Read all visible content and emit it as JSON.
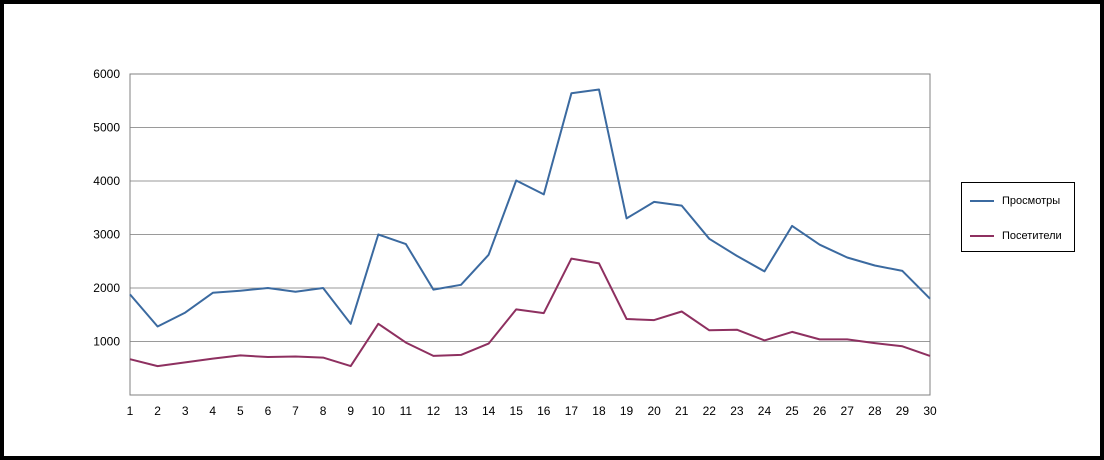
{
  "chart_data": {
    "type": "line",
    "title": "",
    "xlabel": "",
    "ylabel": "",
    "x": [
      1,
      2,
      3,
      4,
      5,
      6,
      7,
      8,
      9,
      10,
      11,
      12,
      13,
      14,
      15,
      16,
      17,
      18,
      19,
      20,
      21,
      22,
      23,
      24,
      25,
      26,
      27,
      28,
      29,
      30
    ],
    "ylim": [
      0,
      6000
    ],
    "yticks": [
      "1000",
      "2000",
      "3000",
      "4000",
      "5000",
      "6000"
    ],
    "grid": true,
    "legend_position": "right",
    "series": [
      {
        "name": "Просмотры",
        "color": "#3B6AA0",
        "values": [
          1880,
          1280,
          1540,
          1910,
          1950,
          2000,
          1930,
          2000,
          1330,
          3000,
          2820,
          1970,
          2060,
          2620,
          4010,
          3750,
          5640,
          5710,
          3300,
          3610,
          3540,
          2920,
          2600,
          2310,
          3160,
          2810,
          2570,
          2420,
          2320,
          1800
        ]
      },
      {
        "name": "Посетители",
        "color": "#8E3060",
        "values": [
          670,
          540,
          610,
          680,
          740,
          710,
          720,
          700,
          540,
          1330,
          980,
          730,
          750,
          960,
          1600,
          1530,
          2550,
          2460,
          1420,
          1400,
          1560,
          1210,
          1220,
          1020,
          1180,
          1040,
          1040,
          970,
          910,
          730
        ]
      }
    ]
  }
}
